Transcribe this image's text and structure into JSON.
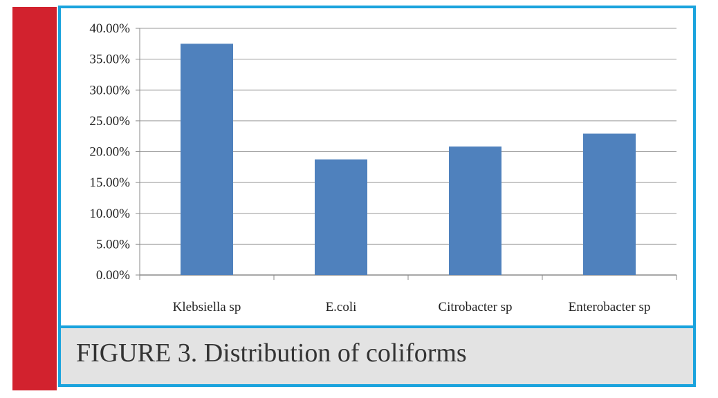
{
  "figure": {
    "caption": "FIGURE 3. Distribution of coliforms"
  },
  "colors": {
    "bar": "#4f81bd",
    "frame": "#1aa3dd",
    "accent_bar": "#d2222e",
    "caption_bg": "#e3e3e3"
  },
  "chart_data": {
    "type": "bar",
    "title": "",
    "xlabel": "",
    "ylabel": "",
    "categories": [
      "Klebsiella sp",
      "E.coli",
      "Citrobacter sp",
      "Enterobacter sp"
    ],
    "values": [
      37.5,
      18.75,
      20.83,
      22.92
    ],
    "ylim": [
      0,
      40
    ],
    "yticks": [
      0,
      5,
      10,
      15,
      20,
      25,
      30,
      35,
      40
    ],
    "ytick_labels": [
      "0.00%",
      "5.00%",
      "10.00%",
      "15.00%",
      "20.00%",
      "25.00%",
      "30.00%",
      "35.00%",
      "40.00%"
    ],
    "grid": true,
    "legend": "none"
  }
}
